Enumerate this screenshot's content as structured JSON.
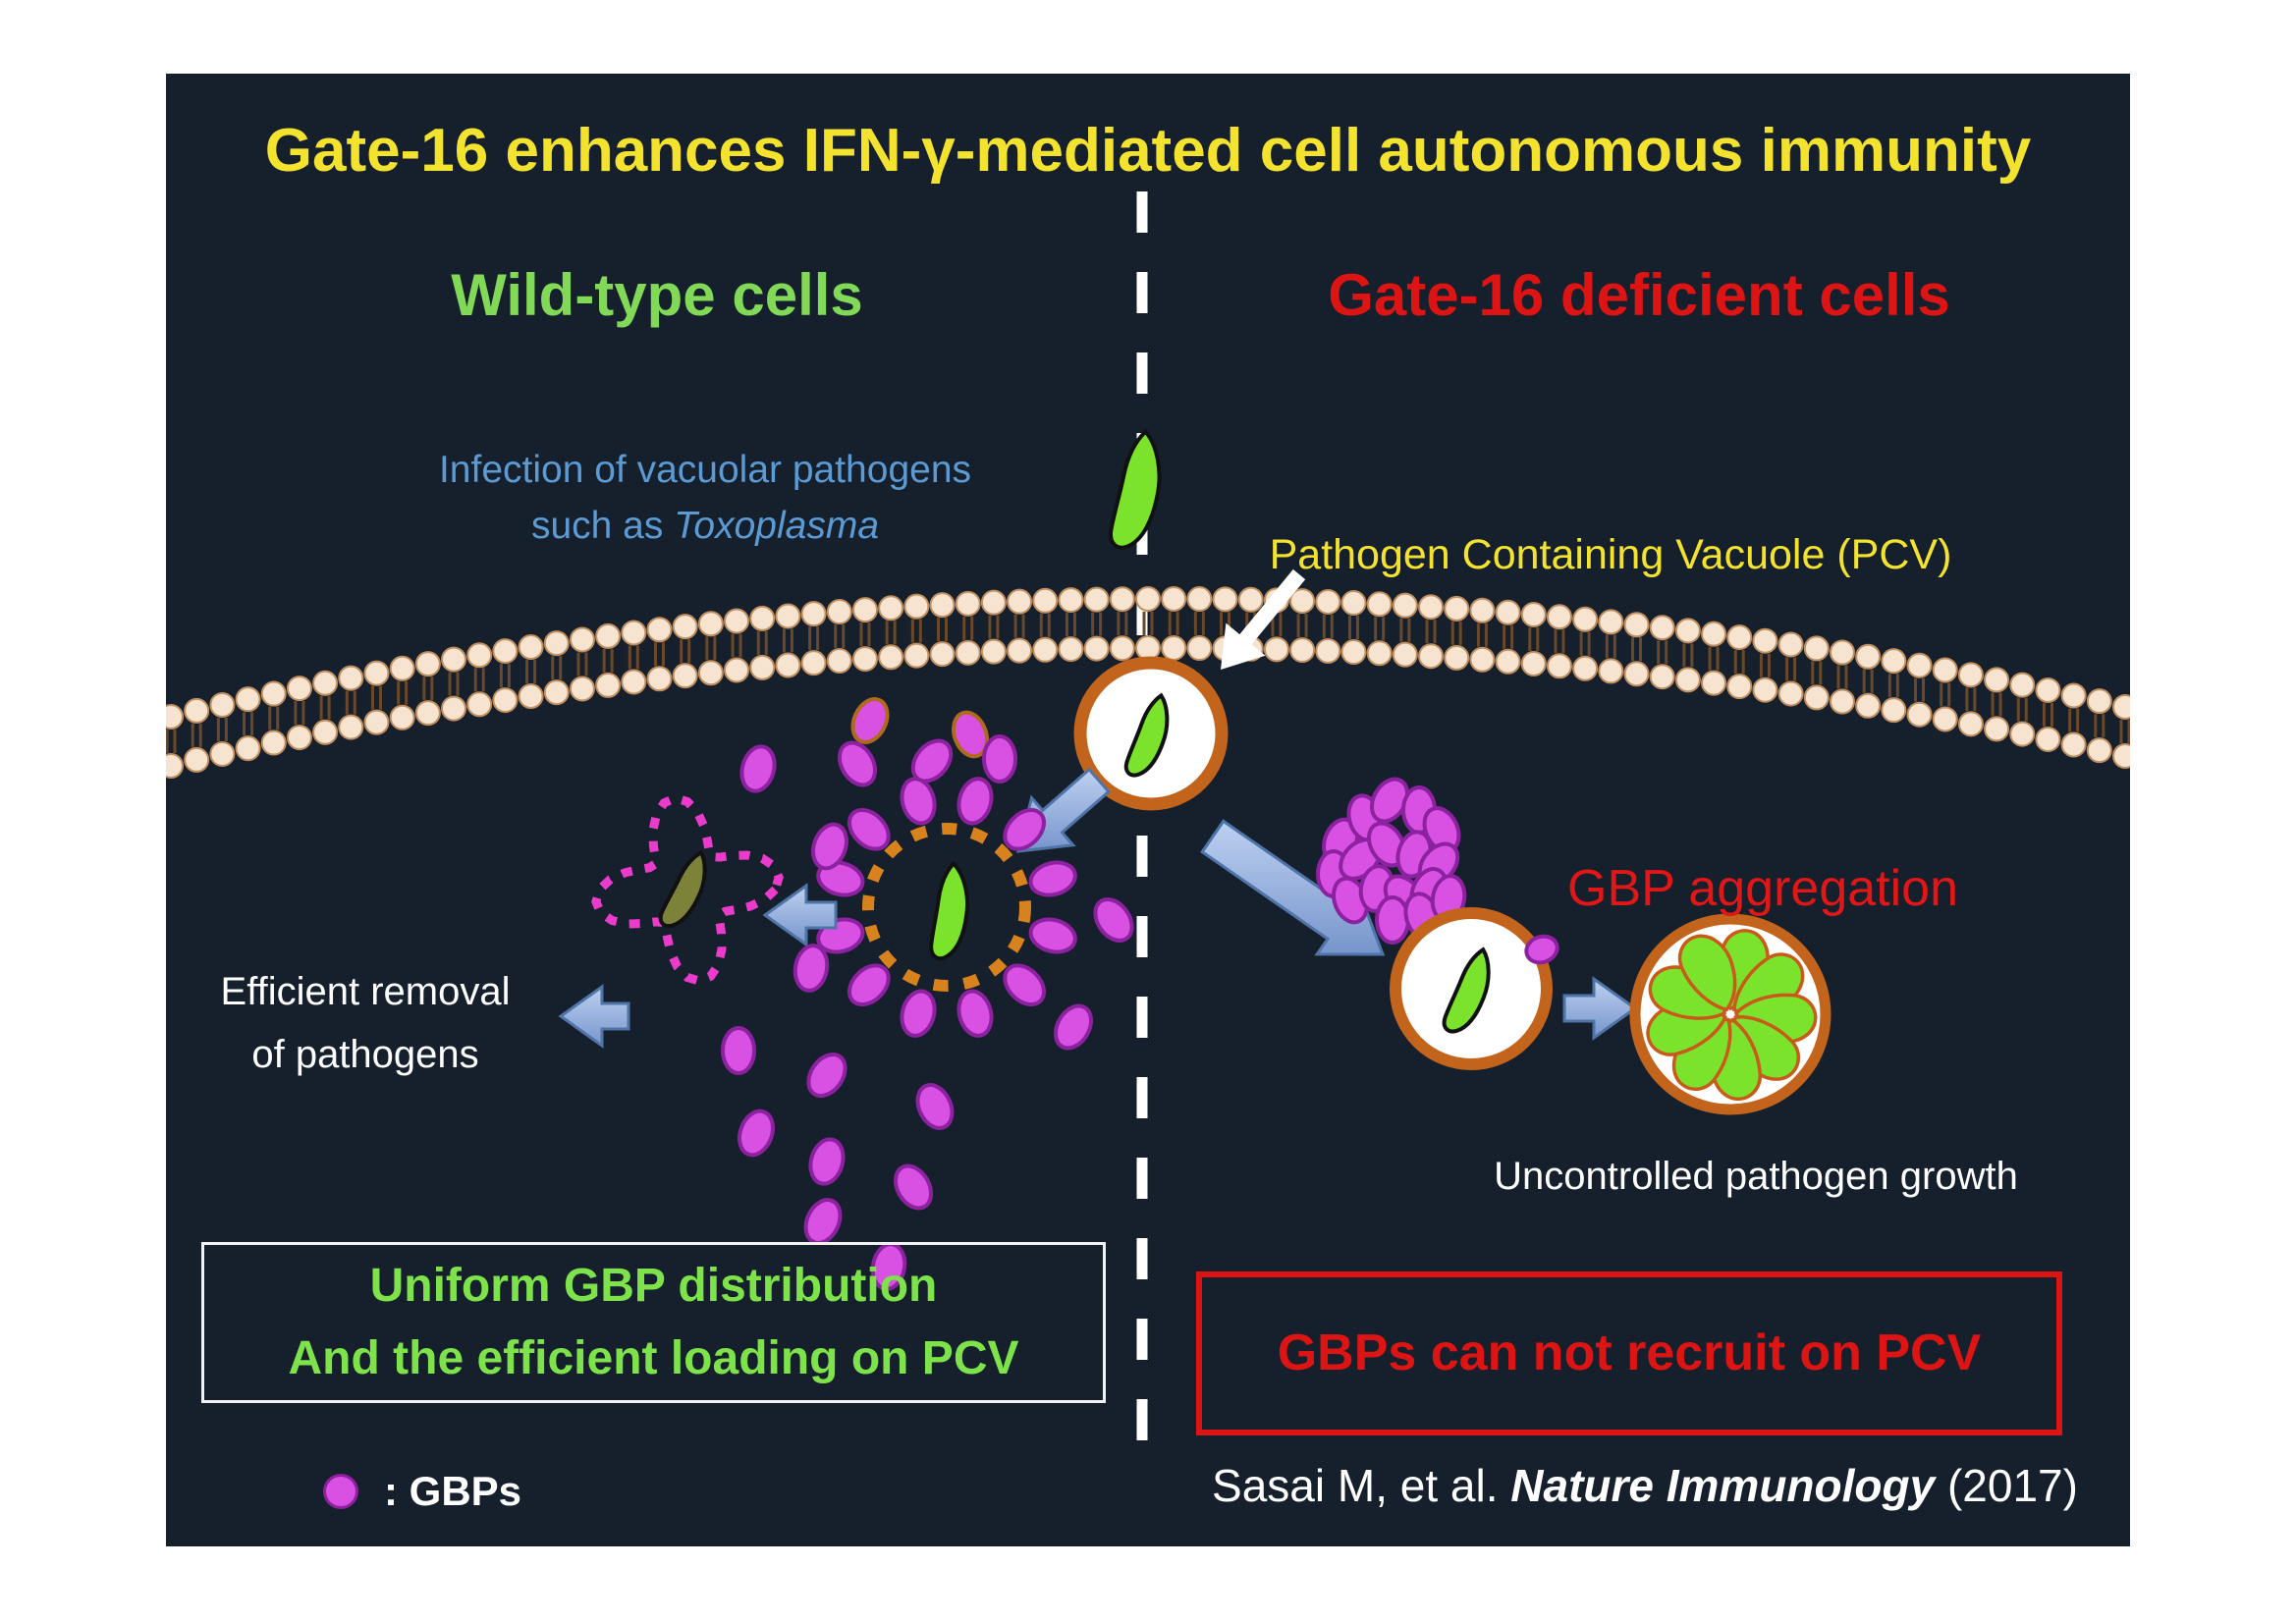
{
  "title": "Gate-16 enhances IFN-γ-mediated cell autonomous immunity",
  "left_side": {
    "header": "Wild-type cells",
    "infection_line1": "Infection of vacuolar pathogens",
    "infection_line2_prefix": "such as ",
    "infection_line2_species": "Toxoplasma",
    "efficient_line1": "Efficient removal",
    "efficient_line2": "of pathogens",
    "box_line1": "Uniform GBP distribution",
    "box_line2": "And the efficient loading on PCV",
    "legend_label": ": GBPs"
  },
  "right_side": {
    "header": "Gate-16 deficient cells",
    "pcv_label": "Pathogen Containing Vacuole (PCV)",
    "aggregation_label": "GBP aggregation",
    "growth_label": "Uncontrolled pathogen growth",
    "box_label": "GBPs can not recruit on PCV",
    "citation_authors": "Sasai M, et al. ",
    "citation_journal": "Nature Immunology",
    "citation_year": " (2017)"
  },
  "colors": {
    "panel_bg": "#161f2c",
    "title_yellow": "#f3e32f",
    "green_header": "#82d957",
    "red": "#dd1414",
    "blue_text": "#5b9ad2",
    "white": "#ffffff",
    "membrane_head": "#f6e3d0",
    "membrane_head_stroke": "#bf8f60",
    "membrane_tail": "#6a482a",
    "vacuole_orange": "#c2641c",
    "pathogen_green": "#7be32c",
    "pathogen_outline": "#111111",
    "olive": "#7c8339",
    "gbp_fill": "#d951e3",
    "gbp_stroke": "#8c22a0",
    "gbp_orange_stroke": "#b06a1e",
    "star_pink": "#ea3bcb",
    "ring_orange": "#d8821e",
    "arrow_light": "#bdd0f0",
    "arrow_dark": "#7795cc",
    "arrow_stroke": "#4f74a8",
    "petal_stroke": "#c85a1a"
  }
}
